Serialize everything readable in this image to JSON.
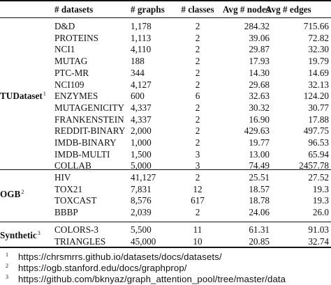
{
  "header": {
    "datasets": "# datasets",
    "graphs": "# graphs",
    "classes": "# classes",
    "avg_nodes": "Avg # nodes",
    "avg_edges": "Avg # edges"
  },
  "groups": [
    {
      "name": "TUDataset",
      "note": "1",
      "rows": [
        {
          "name": "D&D",
          "graphs": "1,178",
          "classes": "2",
          "nodes": "284.32",
          "edges": "715.66"
        },
        {
          "name": "PROTEINS",
          "graphs": "1,113",
          "classes": "2",
          "nodes": "39.06",
          "edges": "72.82"
        },
        {
          "name": "NCI1",
          "graphs": "4,110",
          "classes": "2",
          "nodes": "29.87",
          "edges": "32.30"
        },
        {
          "name": "MUTAG",
          "graphs": "188",
          "classes": "2",
          "nodes": "17.93",
          "edges": "19.79"
        },
        {
          "name": "PTC-MR",
          "graphs": "344",
          "classes": "2",
          "nodes": "14.30",
          "edges": "14.69"
        },
        {
          "name": "NCI109",
          "graphs": "4,127",
          "classes": "2",
          "nodes": "29.68",
          "edges": "32.13"
        },
        {
          "name": "ENZYMES",
          "graphs": "600",
          "classes": "6",
          "nodes": "32.63",
          "edges": "124.20"
        },
        {
          "name": "MUTAGENICITY",
          "graphs": "4,337",
          "classes": "2",
          "nodes": "30.32",
          "edges": "30.77"
        },
        {
          "name": "FRANKENSTEIN",
          "graphs": "4,337",
          "classes": "2",
          "nodes": "16.90",
          "edges": "17.88"
        },
        {
          "name": "REDDIT-BINARY",
          "graphs": "2,000",
          "classes": "2",
          "nodes": "429.63",
          "edges": "497.75"
        },
        {
          "name": "IMDB-BINARY",
          "graphs": "1,000",
          "classes": "2",
          "nodes": "19.77",
          "edges": "96.53"
        },
        {
          "name": "IMDB-MULTI",
          "graphs": "1,500",
          "classes": "3",
          "nodes": "13.00",
          "edges": "65.94"
        },
        {
          "name": "COLLAB",
          "graphs": "5,000",
          "classes": "3",
          "nodes": "74.49",
          "edges": "2457.78"
        }
      ]
    },
    {
      "name": "OGB",
      "note": "2",
      "rows": [
        {
          "name": "HIV",
          "graphs": "41,127",
          "classes": "2",
          "nodes": "25.51",
          "edges": "27.52"
        },
        {
          "name": "TOX21",
          "graphs": "7,831",
          "classes": "12",
          "nodes": "18.57",
          "edges": "19.3"
        },
        {
          "name": "TOXCAST",
          "graphs": "8,576",
          "classes": "617",
          "nodes": "18.78",
          "edges": "19.3"
        },
        {
          "name": "BBBP",
          "graphs": "2,039",
          "classes": "2",
          "nodes": "24.06",
          "edges": "26.0"
        }
      ]
    },
    {
      "name": "Synthetic",
      "note": "3",
      "rows": [
        {
          "name": "COLORS-3",
          "graphs": "5,500",
          "classes": "11",
          "nodes": "61.31",
          "edges": "91.03"
        },
        {
          "name": "TRIANGLES",
          "graphs": "45,000",
          "classes": "10",
          "nodes": "20.85",
          "edges": "32.74"
        }
      ]
    }
  ],
  "footnotes": [
    {
      "mark": "1",
      "text": "https://chrsmrrs.github.io/datasets/docs/datasets/"
    },
    {
      "mark": "2",
      "text": "https://ogb.stanford.edu/docs/graphprop/"
    },
    {
      "mark": "3",
      "text": "https://github.com/bknyaz/graph_attention_pool/tree/master/data"
    }
  ]
}
